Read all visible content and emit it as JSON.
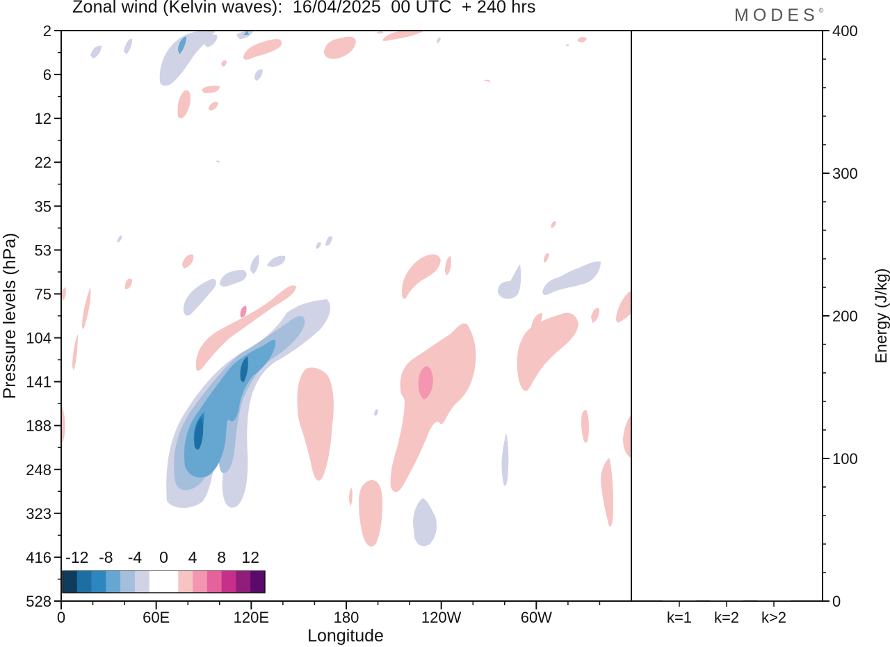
{
  "title": "Zonal wind (Kelvin waves):  16/04/2025  00 UTC  + 240 hrs",
  "brand": "MODES",
  "chart_data": [
    {
      "type": "heatmap",
      "title": "Zonal wind (Kelvin waves):  16/04/2025  00 UTC  + 240 hrs",
      "xlabel": "Longitude",
      "ylabel": "Pressure levels (hPa)",
      "x_ticks": [
        "0",
        "60E",
        "120E",
        "180",
        "120W",
        "60W"
      ],
      "x_tick_degrees": [
        0,
        60,
        120,
        180,
        240,
        300
      ],
      "xlim": [
        0,
        360
      ],
      "y_ticks": [
        "2",
        "6",
        "12",
        "22",
        "35",
        "53",
        "75",
        "104",
        "141",
        "188",
        "248",
        "323",
        "416",
        "528"
      ],
      "contour_levels": [
        -12,
        -10,
        -8,
        -6,
        -4,
        -2,
        0,
        2,
        4,
        6,
        8,
        10,
        12
      ],
      "colorbar_labels": [
        "-12",
        "-8",
        "-4",
        "0",
        "4",
        "8",
        "12"
      ],
      "colorbar_colors": [
        "#0f3b5c",
        "#1d6fa3",
        "#2e86c0",
        "#66a7d1",
        "#a4bedc",
        "#d0d2e6",
        "#ffffff",
        "#ffffff",
        "#f6c4c2",
        "#f495b2",
        "#e5629c",
        "#c62f8c",
        "#8f1d79",
        "#5a0a6b"
      ],
      "features": [
        {
          "sign": "negative",
          "min": -12,
          "lon_range": [
            65,
            110
          ],
          "p_range": [
            75,
            323
          ],
          "center_lon": 87,
          "center_p": 188
        },
        {
          "sign": "negative",
          "min": -10,
          "lon_range": [
            105,
            135
          ],
          "p_range": [
            75,
            248
          ],
          "center_lon": 115,
          "center_p": 141
        },
        {
          "sign": "positive",
          "max": 6,
          "lon_range": [
            85,
            145
          ],
          "p_range": [
            75,
            141
          ],
          "center_lon": 114,
          "center_p": 96
        },
        {
          "sign": "positive",
          "max": 6,
          "lon_range": [
            210,
            265
          ],
          "p_range": [
            53,
            323
          ],
          "center_lon": 230,
          "center_p": 141
        },
        {
          "sign": "negative",
          "min": -4,
          "lon_range": [
            60,
            125
          ],
          "p_range": [
            2,
            12
          ],
          "center_lon": 75,
          "center_p": 4
        },
        {
          "sign": "positive",
          "max": 4,
          "lon_range": [
            135,
            170
          ],
          "p_range": [
            104,
            248
          ],
          "center_lon": 155,
          "center_p": 188
        },
        {
          "sign": "positive",
          "max": 4,
          "lon_range": [
            290,
            340
          ],
          "p_range": [
            75,
            188
          ],
          "center_lon": 305,
          "center_p": 141
        },
        {
          "sign": "negative",
          "min": -4,
          "lon_range": [
            270,
            315
          ],
          "p_range": [
            53,
            75
          ],
          "center_lon": 295,
          "center_p": 75
        },
        {
          "sign": "positive",
          "max": 4,
          "lon_range": [
            185,
            200
          ],
          "p_range": [
            248,
            416
          ],
          "center_lon": 190,
          "center_p": 323
        },
        {
          "sign": "negative",
          "min": -4,
          "lon_range": [
            205,
            215
          ],
          "p_range": [
            323,
            416
          ],
          "center_lon": 210,
          "center_p": 360
        }
      ]
    },
    {
      "type": "bar",
      "categories": [
        "k=1",
        "k=2",
        "k>2"
      ],
      "values": [
        0,
        0,
        0
      ],
      "ylabel": "Energy (J/kg)",
      "ylim": [
        0,
        400
      ],
      "y_ticks": [
        0,
        100,
        200,
        300,
        400
      ]
    }
  ]
}
